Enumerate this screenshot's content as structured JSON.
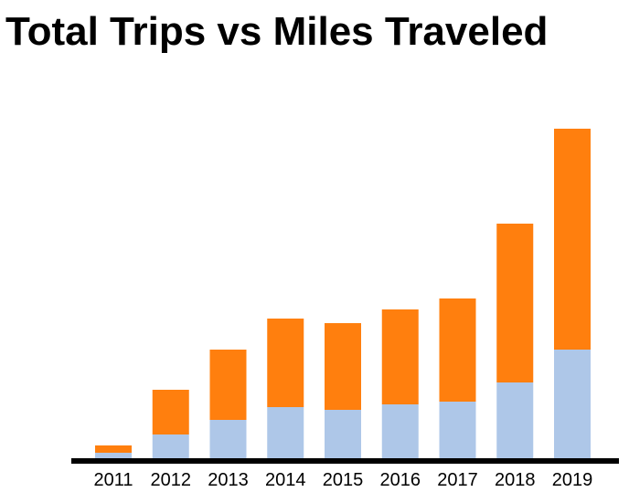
{
  "chart_data": {
    "type": "bar",
    "stacked": true,
    "title": "Total Trips vs Miles Traveled",
    "xlabel": "",
    "ylabel": "",
    "categories": [
      "2011",
      "2012",
      "2013",
      "2014",
      "2015",
      "2016",
      "2017",
      "2018",
      "2019"
    ],
    "series": [
      {
        "color": "#aec7e8",
        "values": [
          6,
          26,
          42,
          56,
          53,
          59,
          62,
          83,
          119
        ]
      },
      {
        "color": "#ff7f0e",
        "values": [
          8,
          49,
          77,
          97,
          95,
          104,
          113,
          174,
          242
        ]
      }
    ],
    "ylim": [
      0,
      362
    ],
    "y_axis_visible": false,
    "grid": false,
    "legend": "none"
  }
}
